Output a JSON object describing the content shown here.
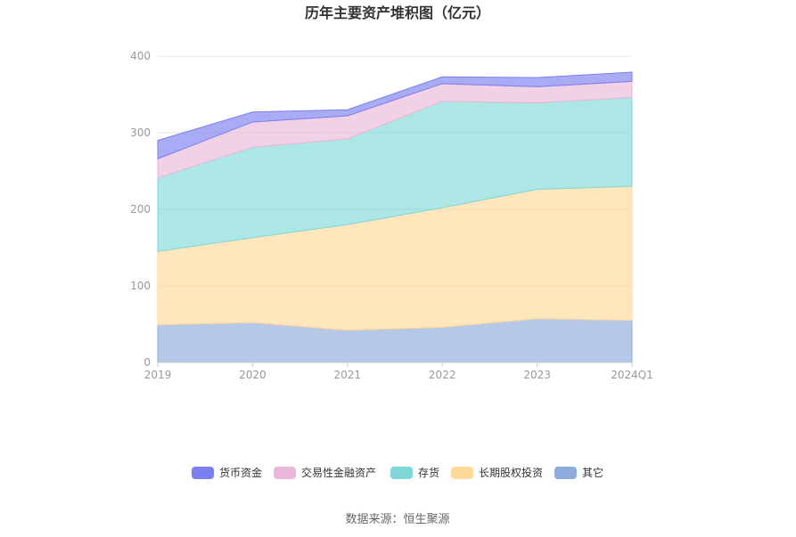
{
  "chart_data": {
    "type": "area",
    "stacked": true,
    "title": "历年主要资产堆积图（亿元）",
    "categories": [
      "2019",
      "2020",
      "2021",
      "2022",
      "2023",
      "2024Q1"
    ],
    "ylim": [
      0,
      400
    ],
    "yticks": [
      "0",
      "100",
      "200",
      "300",
      "400"
    ],
    "grid": true,
    "legend_position": "bottom",
    "series": [
      {
        "name": "其它",
        "color": "#8faadc",
        "values": [
          49,
          52,
          42,
          46,
          57,
          55
        ]
      },
      {
        "name": "长期股权投资",
        "color": "#ffd99a",
        "values": [
          96,
          111,
          138,
          156,
          169,
          175
        ]
      },
      {
        "name": "存货",
        "color": "#7fd8d7",
        "values": [
          96,
          118,
          112,
          139,
          113,
          116
        ]
      },
      {
        "name": "交易性金融资产",
        "color": "#e9b8d9",
        "values": [
          25,
          33,
          30,
          23,
          21,
          21
        ]
      },
      {
        "name": "货币资金",
        "color": "#7b7ff0",
        "values": [
          24,
          13,
          8,
          9,
          12,
          12
        ]
      }
    ],
    "legend_order": [
      "货币资金",
      "交易性金融资产",
      "存货",
      "长期股权投资",
      "其它"
    ],
    "source": "数据来源：恒生聚源"
  }
}
